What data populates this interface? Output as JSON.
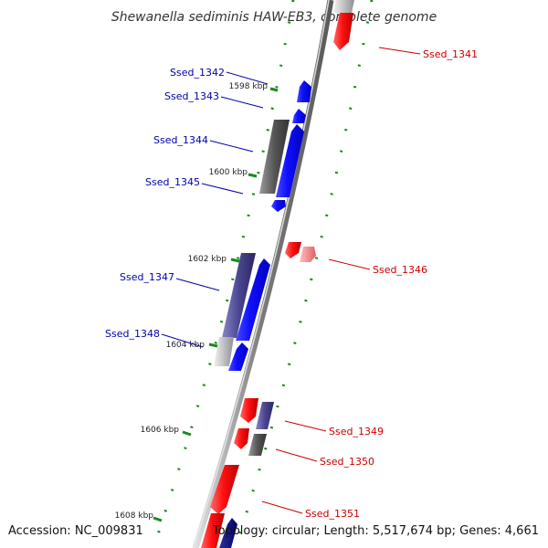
{
  "title": "Shewanella sediminis HAW-EB3, complete genome",
  "accession": "Accession: NC_009831",
  "topology": "Topology: circular; Length: 5,517,674 bp; Genes: 4,661",
  "colors": {
    "backbone_dark": "#6b6b6b",
    "backbone_light": "#cfcfcf",
    "forward_strand": "#0000ff",
    "reverse_strand": "#ff0000",
    "forward_label": "#0000aa",
    "reverse_label": "#cc0000",
    "guide_dots": "#1a8a1a"
  },
  "chart_data": {
    "type": "genome-map",
    "tick_labels": [
      "1598 kbp",
      "1600 kbp",
      "1602 kbp",
      "1604 kbp",
      "1606 kbp",
      "1608 kbp"
    ],
    "genes": [
      {
        "label": "Ssed_1341",
        "strand": "reverse"
      },
      {
        "label": "Ssed_1342",
        "strand": "forward"
      },
      {
        "label": "Ssed_1343",
        "strand": "forward"
      },
      {
        "label": "Ssed_1344",
        "strand": "forward"
      },
      {
        "label": "Ssed_1345",
        "strand": "forward"
      },
      {
        "label": "Ssed_1346",
        "strand": "reverse"
      },
      {
        "label": "Ssed_1347",
        "strand": "forward"
      },
      {
        "label": "Ssed_1348",
        "strand": "forward"
      },
      {
        "label": "Ssed_1349",
        "strand": "reverse"
      },
      {
        "label": "Ssed_1350",
        "strand": "reverse"
      },
      {
        "label": "Ssed_1351",
        "strand": "reverse"
      }
    ]
  }
}
